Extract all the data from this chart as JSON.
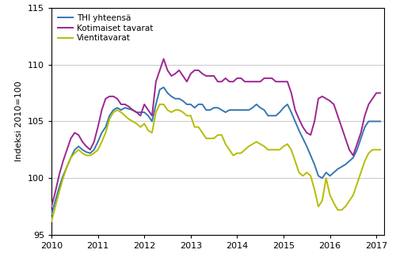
{
  "ylabel": "Indeksi 2010=100",
  "ylim": [
    95,
    115
  ],
  "yticks": [
    95,
    100,
    105,
    110,
    115
  ],
  "xlim": [
    2010.0,
    2017.167
  ],
  "xticks": [
    2010,
    2011,
    2012,
    2013,
    2014,
    2015,
    2016,
    2017
  ],
  "colors": {
    "thi": "#3777b0",
    "kotimaiset": "#9b2691",
    "vienti": "#b5bd00"
  },
  "legend_labels": [
    "THI yhteensä",
    "Kotimaiset tavarat",
    "Vientitavarat"
  ],
  "thi_yhteensa": [
    96.8,
    98.0,
    99.2,
    100.2,
    101.0,
    101.8,
    102.5,
    102.8,
    102.5,
    102.3,
    102.2,
    102.5,
    103.2,
    104.0,
    104.5,
    105.5,
    106.0,
    106.2,
    106.0,
    106.2,
    106.1,
    106.0,
    105.8,
    105.8,
    105.8,
    105.5,
    105.0,
    106.5,
    107.8,
    108.0,
    107.5,
    107.2,
    107.0,
    107.0,
    106.8,
    106.5,
    106.5,
    106.2,
    106.5,
    106.5,
    106.0,
    106.0,
    106.2,
    106.2,
    106.0,
    105.8,
    106.0,
    106.0,
    106.0,
    106.0,
    106.0,
    106.0,
    106.2,
    106.5,
    106.2,
    106.0,
    105.5,
    105.5,
    105.5,
    105.8,
    106.2,
    106.5,
    105.8,
    105.0,
    104.2,
    103.5,
    102.8,
    102.0,
    101.2,
    100.2,
    100.0,
    100.5,
    100.2,
    100.5,
    100.8,
    101.0,
    101.2,
    101.5,
    101.8,
    102.5,
    103.5,
    104.5,
    105.0,
    105.0,
    105.0,
    105.0
  ],
  "kotimaiset_tavarat": [
    97.5,
    98.8,
    100.3,
    101.5,
    102.5,
    103.5,
    104.0,
    103.8,
    103.2,
    102.8,
    102.5,
    103.2,
    104.5,
    106.0,
    107.0,
    107.2,
    107.2,
    107.0,
    106.5,
    106.5,
    106.3,
    106.0,
    105.8,
    105.5,
    106.5,
    106.0,
    105.5,
    108.5,
    109.5,
    110.5,
    109.5,
    109.0,
    109.2,
    109.5,
    109.0,
    108.5,
    109.2,
    109.5,
    109.5,
    109.2,
    109.0,
    109.0,
    109.0,
    108.5,
    108.5,
    108.8,
    108.5,
    108.5,
    108.8,
    108.8,
    108.5,
    108.5,
    108.5,
    108.5,
    108.5,
    108.8,
    108.8,
    108.8,
    108.5,
    108.5,
    108.5,
    108.5,
    107.5,
    106.0,
    105.2,
    104.5,
    104.0,
    103.8,
    105.0,
    107.0,
    107.2,
    107.0,
    106.8,
    106.5,
    105.5,
    104.5,
    103.5,
    102.5,
    102.0,
    103.0,
    104.0,
    105.5,
    106.5,
    107.0,
    107.5,
    107.5
  ],
  "vienti_tavarat": [
    96.2,
    97.5,
    98.8,
    100.0,
    101.0,
    101.8,
    102.2,
    102.5,
    102.2,
    102.0,
    102.0,
    102.2,
    102.5,
    103.2,
    104.0,
    105.2,
    105.8,
    106.0,
    105.8,
    105.5,
    105.2,
    105.0,
    104.8,
    104.5,
    104.8,
    104.2,
    104.0,
    105.8,
    106.5,
    106.5,
    106.0,
    105.8,
    106.0,
    106.0,
    105.8,
    105.5,
    105.5,
    104.5,
    104.5,
    104.0,
    103.5,
    103.5,
    103.5,
    103.8,
    103.8,
    103.0,
    102.5,
    102.0,
    102.2,
    102.2,
    102.5,
    102.8,
    103.0,
    103.2,
    103.0,
    102.8,
    102.5,
    102.5,
    102.5,
    102.5,
    102.8,
    103.0,
    102.5,
    101.5,
    100.5,
    100.2,
    100.5,
    100.2,
    99.0,
    97.5,
    98.0,
    100.0,
    98.5,
    97.8,
    97.2,
    97.2,
    97.5,
    98.0,
    98.5,
    99.5,
    100.5,
    101.5,
    102.2,
    102.5,
    102.5,
    102.5
  ],
  "grid_color": "#cccccc",
  "background_color": "#ffffff",
  "line_width": 1.4
}
